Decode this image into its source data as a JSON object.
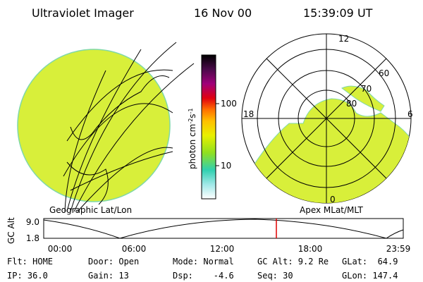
{
  "header": {
    "title": "Ultraviolet Imager",
    "date": "16 Nov 00",
    "time": "15:39:09 UT"
  },
  "left_panel": {
    "label": "Geographic Lat/Lon"
  },
  "right_panel": {
    "label": "Apex MLat/MLT",
    "mlt_labels": [
      "12",
      "18",
      "6",
      "0"
    ],
    "lat_labels": [
      "60",
      "70",
      "80"
    ]
  },
  "colorbar": {
    "unit": [
      "photon cm",
      "-2",
      "s",
      "-1"
    ],
    "ticks": [
      "100",
      "10"
    ]
  },
  "altitude_plot": {
    "axis_label": "GC Alt",
    "y_labels": [
      "9.0",
      "1.8"
    ],
    "x_labels": [
      "00:00",
      "06:00",
      "12:00",
      "18:00",
      "23:59"
    ]
  },
  "status": {
    "rows": [
      [
        "Flt: HOME",
        "Door: Open",
        "Mode: Normal",
        "GC Alt: 9.2 Re",
        "GLat:  64.9"
      ],
      [
        "IP: 36.0",
        "Gain: 13",
        "Dsp:    -4.6",
        "Seq: 30",
        "GLon: 147.4"
      ]
    ]
  }
}
